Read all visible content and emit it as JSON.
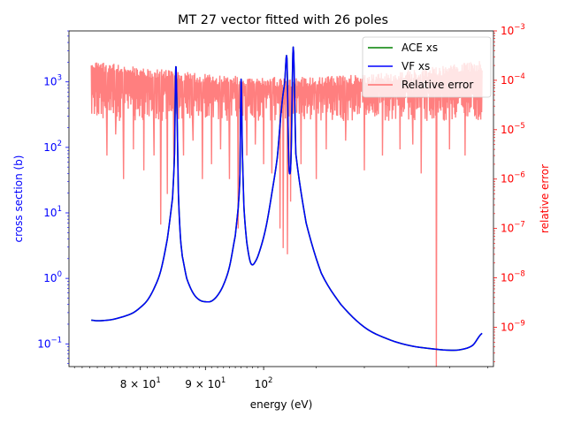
{
  "chart_data": {
    "type": "line",
    "title": "MT 27 vector fitted with 26 poles",
    "xlabel": "energy (eV)",
    "ylabel_left": "cross section (b)",
    "ylabel_right": "relative error",
    "x_scale": "log",
    "y_scale_left": "log",
    "y_scale_right": "log",
    "xlim": [
      70.3,
      151.6
    ],
    "ylim_left": [
      0.045,
      6000
    ],
    "ylim_right": [
      1.6e-10,
      0.001
    ],
    "x_ticks": [
      {
        "value": 80,
        "label": "8 × 10",
        "exp": "1"
      },
      {
        "value": 90,
        "label": "9 × 10",
        "exp": "1"
      },
      {
        "value": 100,
        "label": "10",
        "exp": "2"
      }
    ],
    "y_ticks_left": [
      {
        "value": 0.1,
        "label": "10",
        "exp": "−1"
      },
      {
        "value": 1,
        "label": "10",
        "exp": "0"
      },
      {
        "value": 10,
        "label": "10",
        "exp": "1"
      },
      {
        "value": 100,
        "label": "10",
        "exp": "2"
      },
      {
        "value": 1000,
        "label": "10",
        "exp": "3"
      }
    ],
    "y_ticks_right": [
      {
        "value": 1e-09,
        "label": "10",
        "exp": "−9"
      },
      {
        "value": 1e-08,
        "label": "10",
        "exp": "−8"
      },
      {
        "value": 1e-07,
        "label": "10",
        "exp": "−7"
      },
      {
        "value": 1e-06,
        "label": "10",
        "exp": "−6"
      },
      {
        "value": 1e-05,
        "label": "10",
        "exp": "−5"
      },
      {
        "value": 0.0001,
        "label": "10",
        "exp": "−4"
      },
      {
        "value": 0.001,
        "label": "10",
        "exp": "−3"
      }
    ],
    "legend": {
      "placement": "top-right",
      "entries": [
        {
          "label": "ACE xs",
          "color": "#008000"
        },
        {
          "label": "VF xs",
          "color": "#0000ff"
        },
        {
          "label": "Relative error",
          "color": "#ff0000"
        }
      ]
    },
    "series": [
      {
        "name": "ACE xs",
        "axis": "left",
        "color": "#008000",
        "x": [
          73.2,
          74.0,
          75.0,
          76.0,
          77.0,
          78.0,
          79.0,
          80.0,
          81.0,
          82.0,
          83.0,
          84.0,
          84.8,
          85.1,
          85.3,
          85.5,
          85.7,
          86.0,
          86.3,
          87.0,
          88.0,
          89.0,
          90.0,
          91.0,
          92.0,
          93.0,
          94.0,
          95.0,
          95.5,
          95.8,
          96.0,
          96.2,
          96.5,
          97.0,
          97.7,
          98.5,
          99.5,
          100.5,
          101.5,
          102.5,
          103.3,
          103.9,
          104.3,
          104.6,
          104.8,
          105.1,
          105.5,
          106.0,
          108.0,
          111.0,
          115.0,
          120.0,
          125.0,
          130.0,
          135.0,
          140.0,
          143.0,
          146.0,
          148.5
        ],
        "y": [
          0.23,
          0.225,
          0.228,
          0.235,
          0.25,
          0.27,
          0.3,
          0.36,
          0.46,
          0.7,
          1.3,
          4.0,
          17,
          80,
          1700,
          300,
          20,
          4.5,
          2.2,
          1.0,
          0.6,
          0.47,
          0.44,
          0.45,
          0.55,
          0.8,
          1.5,
          4.5,
          12,
          40,
          1100,
          100,
          12,
          3.5,
          1.7,
          1.8,
          3.0,
          6.5,
          20,
          70,
          400,
          1000,
          2300,
          100,
          40,
          80,
          3400,
          80,
          7.0,
          1.2,
          0.4,
          0.18,
          0.12,
          0.095,
          0.085,
          0.08,
          0.082,
          0.095,
          0.145
        ]
      },
      {
        "name": "VF xs",
        "axis": "left",
        "color": "#0000ff",
        "x": [
          73.2,
          74.0,
          75.0,
          76.0,
          77.0,
          78.0,
          79.0,
          80.0,
          81.0,
          82.0,
          83.0,
          84.0,
          84.8,
          85.1,
          85.3,
          85.5,
          85.7,
          86.0,
          86.3,
          87.0,
          88.0,
          89.0,
          90.0,
          91.0,
          92.0,
          93.0,
          94.0,
          95.0,
          95.5,
          95.8,
          96.0,
          96.2,
          96.5,
          97.0,
          97.7,
          98.5,
          99.5,
          100.5,
          101.5,
          102.5,
          103.3,
          103.9,
          104.3,
          104.6,
          104.8,
          105.1,
          105.5,
          106.0,
          108.0,
          111.0,
          115.0,
          120.0,
          125.0,
          130.0,
          135.0,
          140.0,
          143.0,
          146.0,
          148.5
        ],
        "y": [
          0.23,
          0.225,
          0.228,
          0.235,
          0.25,
          0.27,
          0.3,
          0.36,
          0.46,
          0.7,
          1.3,
          4.0,
          17,
          80,
          1700,
          300,
          20,
          4.5,
          2.2,
          1.0,
          0.6,
          0.47,
          0.44,
          0.45,
          0.55,
          0.8,
          1.5,
          4.5,
          12,
          40,
          1100,
          100,
          12,
          3.5,
          1.7,
          1.8,
          3.0,
          6.5,
          20,
          70,
          400,
          1000,
          2300,
          100,
          40,
          80,
          3400,
          80,
          7.0,
          1.2,
          0.4,
          0.18,
          0.12,
          0.095,
          0.085,
          0.08,
          0.082,
          0.095,
          0.145
        ]
      },
      {
        "name": "Relative error",
        "axis": "right",
        "color": "#ff0000",
        "alpha": 0.5,
        "x_start": 73.2,
        "x_end": 148.5,
        "typical_range": [
          3e-06,
          0.00025
        ],
        "dips": [
          {
            "x": 75.3,
            "y": 3e-06
          },
          {
            "x": 76.5,
            "y": 8e-06
          },
          {
            "x": 77.6,
            "y": 1e-06
          },
          {
            "x": 79.0,
            "y": 4e-06
          },
          {
            "x": 80.5,
            "y": 1.5e-06
          },
          {
            "x": 82.0,
            "y": 3e-06
          },
          {
            "x": 83.0,
            "y": 1.2e-07
          },
          {
            "x": 84.0,
            "y": 5e-07
          },
          {
            "x": 85.0,
            "y": 2e-06
          },
          {
            "x": 86.5,
            "y": 3e-06
          },
          {
            "x": 88.0,
            "y": 6e-06
          },
          {
            "x": 89.5,
            "y": 1e-06
          },
          {
            "x": 91.0,
            "y": 2e-06
          },
          {
            "x": 92.5,
            "y": 4e-06
          },
          {
            "x": 94.0,
            "y": 1e-06
          },
          {
            "x": 95.5,
            "y": 1e-07
          },
          {
            "x": 97.0,
            "y": 3e-06
          },
          {
            "x": 98.5,
            "y": 5e-06
          },
          {
            "x": 100.0,
            "y": 2e-06
          },
          {
            "x": 101.5,
            "y": 1.3e-06
          },
          {
            "x": 103.0,
            "y": 1e-07
          },
          {
            "x": 103.6,
            "y": 4e-08
          },
          {
            "x": 104.4,
            "y": 3e-08
          },
          {
            "x": 105.0,
            "y": 3.5e-07
          },
          {
            "x": 107.0,
            "y": 2e-06
          },
          {
            "x": 110.0,
            "y": 1e-06
          },
          {
            "x": 112.0,
            "y": 4e-06
          },
          {
            "x": 116.0,
            "y": 6e-06
          },
          {
            "x": 120.0,
            "y": 1.5e-06
          },
          {
            "x": 124.0,
            "y": 3e-06
          },
          {
            "x": 128.0,
            "y": 4e-06
          },
          {
            "x": 131.0,
            "y": 5e-06
          },
          {
            "x": 133.0,
            "y": 1.3e-06
          },
          {
            "x": 136.7,
            "y": 1.6e-10
          },
          {
            "x": 140.0,
            "y": 4e-06
          },
          {
            "x": 144.0,
            "y": 3e-06
          }
        ]
      }
    ]
  }
}
